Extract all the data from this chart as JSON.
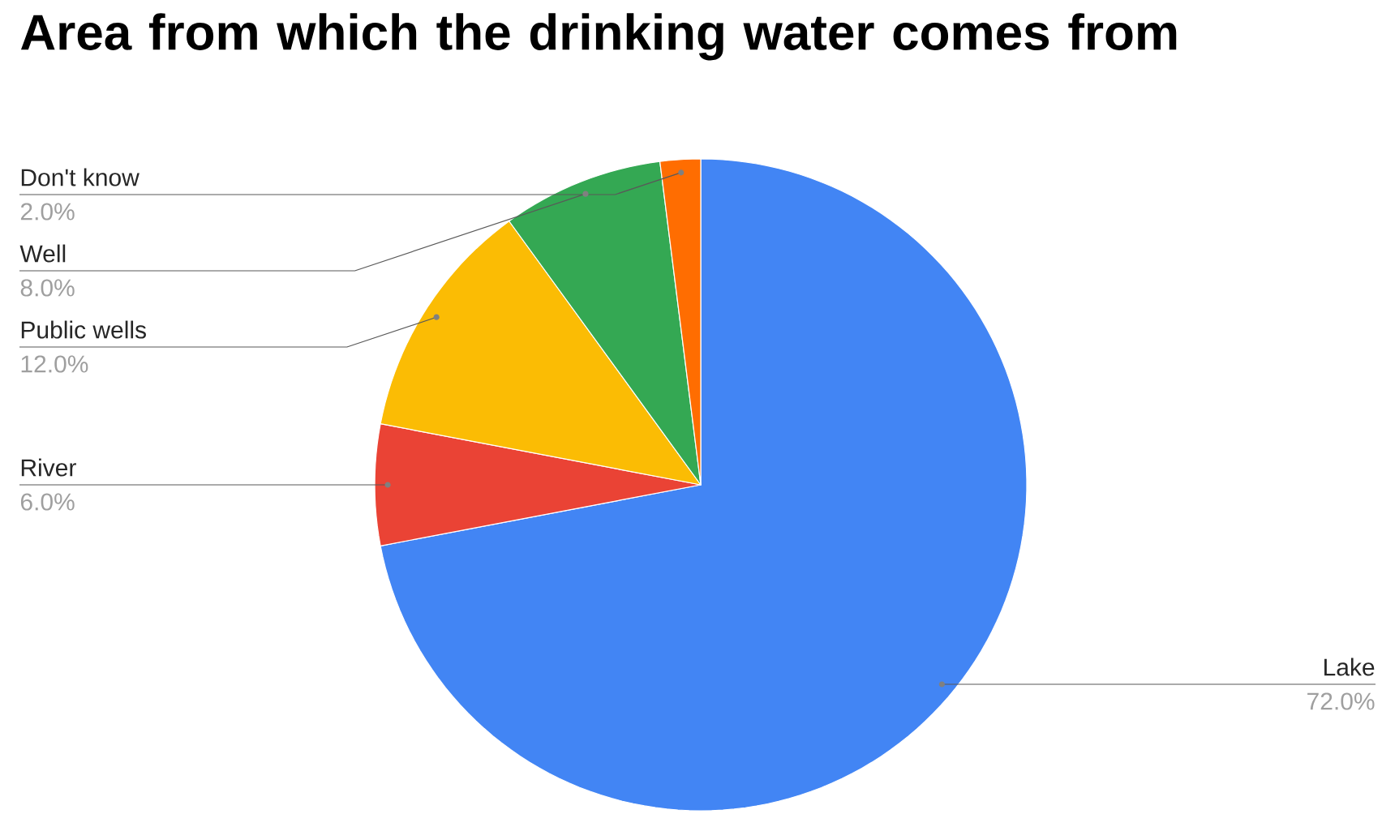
{
  "chart_data": {
    "type": "pie",
    "title": "Area from which the drinking water comes from",
    "categories": [
      "Lake",
      "River",
      "Public wells",
      "Well",
      "Don't know"
    ],
    "values": [
      72,
      6,
      12,
      8,
      2
    ],
    "value_labels": [
      "72.0%",
      "6.0%",
      "12.0%",
      "8.0%",
      "2.0%"
    ],
    "colors": [
      "#4285f4",
      "#ea4335",
      "#fbbc04",
      "#34a853",
      "#ff6d01"
    ]
  }
}
